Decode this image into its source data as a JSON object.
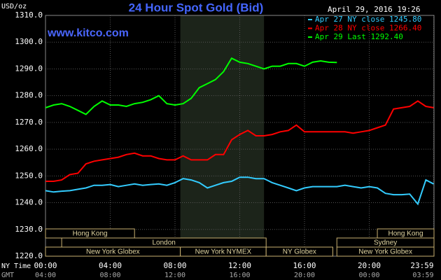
{
  "chart_data": {
    "type": "line",
    "title": "24 Hour Spot Gold (Bid)",
    "subtitle": "April 29, 2016 19:26",
    "watermark": "www.kitco.com",
    "ylabel": "USD/oz",
    "xlabel": "NY Time",
    "x2label": "GMT",
    "xlim": [
      0,
      24
    ],
    "xticks": [
      {
        "value": 0,
        "label": "00:00"
      },
      {
        "value": 4,
        "label": "04:00"
      },
      {
        "value": 8,
        "label": "08:00"
      },
      {
        "value": 12,
        "label": "12:00"
      },
      {
        "value": 16,
        "label": "16:00"
      },
      {
        "value": 20,
        "label": "20:00"
      },
      {
        "value": 23.98,
        "label": "23:59"
      }
    ],
    "x2tick_labels": [
      "04:00",
      "08:00",
      "12:00",
      "16:00",
      "20:00",
      "00:00",
      "03:59"
    ],
    "ylim": [
      1220,
      1310
    ],
    "yticks": [
      {
        "value": 1220,
        "label": "1220.0"
      },
      {
        "value": 1230,
        "label": "1230.0"
      },
      {
        "value": 1240,
        "label": "1240.0"
      },
      {
        "value": 1250,
        "label": "1250.0"
      },
      {
        "value": 1260,
        "label": "1260.0"
      },
      {
        "value": 1270,
        "label": "1270.0"
      },
      {
        "value": 1280,
        "label": "1280.0"
      },
      {
        "value": 1290,
        "label": "1290.0"
      },
      {
        "value": 1300,
        "label": "1300.0"
      },
      {
        "value": 1310,
        "label": "1310.0"
      }
    ],
    "grid": true,
    "legend": "top-right",
    "shaded": {
      "start": 8.33,
      "end": 13.5
    },
    "session_rows": [
      [
        {
          "label": "Hong Kong",
          "start": 0,
          "end": 5.5
        },
        {
          "label": "Hong Kong",
          "start": 20.5,
          "end": 24
        }
      ],
      [
        {
          "label": "London",
          "start": 1,
          "end": 13.63
        },
        {
          "label": "Sydney",
          "start": 18,
          "end": 24
        }
      ],
      [
        {
          "label": "New York Globex",
          "start": 0,
          "end": 8.33
        },
        {
          "label": "New York NYMEX",
          "start": 8.33,
          "end": 13.63
        },
        {
          "label": "NY Globex",
          "start": 13.63,
          "end": 17.75
        },
        {
          "label": "New York Globex",
          "start": 18,
          "end": 24
        }
      ]
    ],
    "x": [
      0,
      0.5,
      1,
      1.5,
      2,
      2.5,
      3,
      3.5,
      4,
      4.5,
      5,
      5.5,
      6,
      6.5,
      7,
      7.5,
      8,
      8.5,
      9,
      9.5,
      10,
      10.5,
      11,
      11.5,
      12,
      12.5,
      13,
      13.5,
      14,
      14.5,
      15,
      15.5,
      16,
      16.5,
      17,
      17.5,
      18,
      18.5,
      19,
      19.5,
      20,
      20.5,
      21,
      21.5,
      22,
      22.5,
      23,
      23.5,
      23.98
    ],
    "series": [
      {
        "name": "Apr 27 NY close 1245.80",
        "color": "#33ccff",
        "values": [
          1244.5,
          1244.0,
          1244.3,
          1244.5,
          1245,
          1245.5,
          1246.5,
          1246.5,
          1246.8,
          1246.0,
          1246.5,
          1247,
          1246.5,
          1246.8,
          1247,
          1246.5,
          1247.5,
          1249,
          1248.5,
          1247.5,
          1245.5,
          1246.5,
          1247.5,
          1248,
          1249.5,
          1249.5,
          1249,
          1249,
          1247.5,
          1246.5,
          1245.5,
          1244.5,
          1245.5,
          1246,
          1246,
          1246,
          1246,
          1246.5,
          1246,
          1245.5,
          1246,
          1245.5,
          1243.5,
          1243.0,
          1243,
          1243.2,
          1239.5,
          1248.5,
          1247
        ]
      },
      {
        "name": "Apr 28 NY close 1266.40",
        "color": "#ff0000",
        "values": [
          1248,
          1248,
          1248.5,
          1250.5,
          1251,
          1254.5,
          1255.5,
          1256,
          1256.5,
          1257,
          1258,
          1258.5,
          1257.5,
          1257.5,
          1256.5,
          1256,
          1256,
          1257.5,
          1256,
          1256,
          1256,
          1258,
          1258,
          1263.5,
          1265.5,
          1267,
          1265,
          1265,
          1265.5,
          1266.5,
          1267,
          1269,
          1266.5,
          1266.5,
          1266.5,
          1266.5,
          1266.5,
          1266.5,
          1266,
          1266.5,
          1267,
          1268,
          1269,
          1275,
          1275.5,
          1276,
          1278,
          1276,
          1275.5
        ]
      },
      {
        "name": "Apr 29 Last 1292.40",
        "color": "#00ff00",
        "values": [
          1275.5,
          1276.5,
          1277,
          1276,
          1274.5,
          1273,
          1276,
          1278,
          1276.5,
          1276.5,
          1276,
          1277,
          1277.5,
          1278.5,
          1280,
          1277,
          1276.5,
          1277,
          1279,
          1283,
          1284.5,
          1286,
          1289,
          1294,
          1292.5,
          1292,
          1291,
          1290,
          1291,
          1291,
          1292,
          1292,
          1291,
          1292.5,
          1293,
          1292.5,
          1292.4,
          null,
          null,
          null,
          null,
          null,
          null,
          null,
          null,
          null,
          null,
          null,
          null
        ]
      }
    ]
  }
}
